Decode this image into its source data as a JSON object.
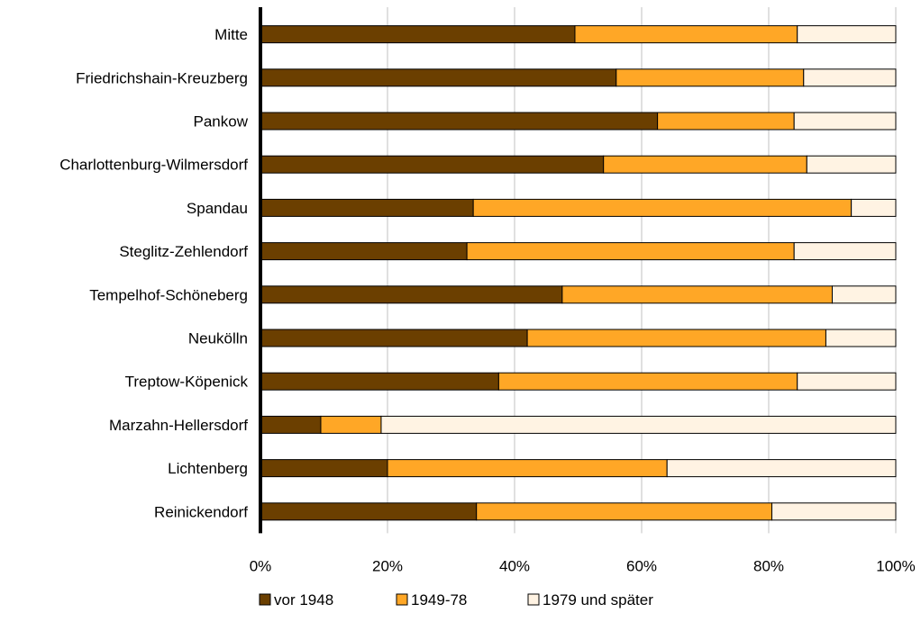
{
  "chart_data": {
    "type": "bar",
    "orientation": "horizontal",
    "stacked": "percent",
    "categories": [
      "Mitte",
      "Friedrichshain-Kreuzberg",
      "Pankow",
      "Charlottenburg-Wilmersdorf",
      "Spandau",
      "Steglitz-Zehlendorf",
      "Tempelhof-Schöneberg",
      "Neukölln",
      "Treptow-Köpenick",
      "Marzahn-Hellersdorf",
      "Lichtenberg",
      "Reinickendorf"
    ],
    "series": [
      {
        "name": "vor 1948",
        "color": "#6b3f00",
        "values": [
          49.5,
          56.0,
          62.5,
          54.0,
          33.5,
          32.5,
          47.5,
          42.0,
          37.5,
          9.5,
          20.0,
          34.0
        ]
      },
      {
        "name": "1949-78",
        "color": "#ffa726",
        "values": [
          35.0,
          29.5,
          21.5,
          32.0,
          59.5,
          51.5,
          42.5,
          47.0,
          47.0,
          9.5,
          44.0,
          46.5
        ]
      },
      {
        "name": "1979 und später",
        "color": "#fff3e3",
        "values": [
          15.5,
          14.5,
          16.0,
          14.0,
          7.0,
          16.0,
          10.0,
          11.0,
          15.5,
          81.0,
          36.0,
          19.5
        ]
      }
    ],
    "xlim": [
      0,
      100
    ],
    "xticks": [
      "0%",
      "20%",
      "40%",
      "60%",
      "80%",
      "100%"
    ],
    "grid": "vertical",
    "legend": "bottom",
    "title": "",
    "xlabel": "",
    "ylabel": ""
  }
}
